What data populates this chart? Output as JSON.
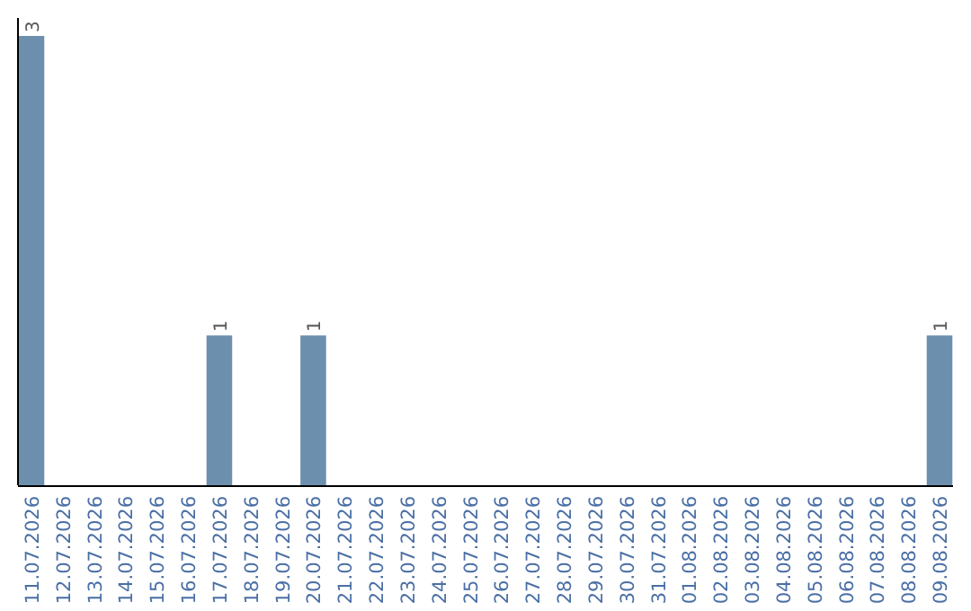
{
  "chart_data": {
    "type": "bar",
    "categories": [
      "11.07.2026",
      "12.07.2026",
      "13.07.2026",
      "14.07.2026",
      "15.07.2026",
      "16.07.2026",
      "17.07.2026",
      "18.07.2026",
      "19.07.2026",
      "20.07.2026",
      "21.07.2026",
      "22.07.2026",
      "23.07.2026",
      "24.07.2026",
      "25.07.2026",
      "26.07.2026",
      "27.07.2026",
      "28.07.2026",
      "29.07.2026",
      "30.07.2026",
      "31.07.2026",
      "01.08.2026",
      "02.08.2026",
      "03.08.2026",
      "04.08.2026",
      "05.08.2026",
      "06.08.2026",
      "07.08.2026",
      "08.08.2026",
      "09.08.2026"
    ],
    "values": [
      3,
      0,
      0,
      0,
      0,
      0,
      1,
      0,
      0,
      1,
      0,
      0,
      0,
      0,
      0,
      0,
      0,
      0,
      0,
      0,
      0,
      0,
      0,
      0,
      0,
      0,
      0,
      0,
      0,
      1
    ],
    "value_labels": [
      "3",
      null,
      null,
      null,
      null,
      null,
      "1",
      null,
      null,
      "1",
      null,
      null,
      null,
      null,
      null,
      null,
      null,
      null,
      null,
      null,
      null,
      null,
      null,
      null,
      null,
      null,
      null,
      null,
      null,
      "1"
    ],
    "color": "#6d8fae"
  }
}
